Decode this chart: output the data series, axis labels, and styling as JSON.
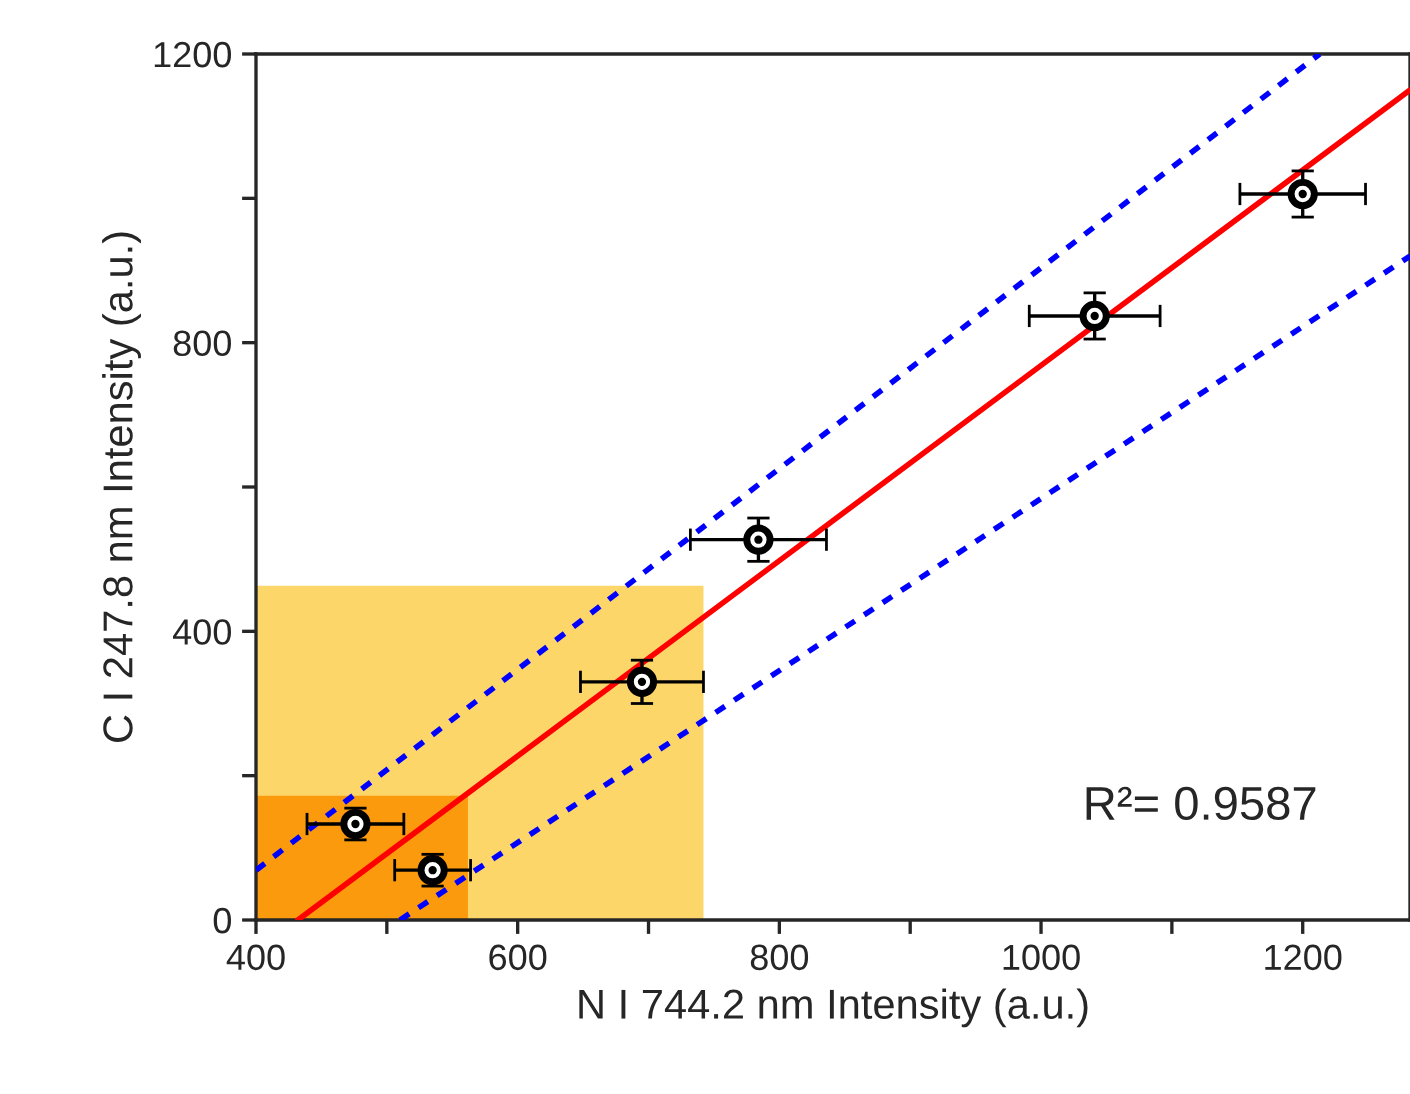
{
  "chart_data": {
    "type": "scatter",
    "xlabel": "N I 744.2 nm Intensity (a.u.)",
    "ylabel": "C I 247.8 nm Intensity (a.u.)",
    "xlim": [
      400,
      1282
    ],
    "ylim": [
      0,
      1200
    ],
    "xticks": [
      400,
      {
        "value": 500,
        "label": null
      },
      600,
      {
        "value": 700,
        "label": null
      },
      800,
      {
        "value": 900,
        "label": null
      },
      1000,
      {
        "value": 1100,
        "label": null
      },
      1200
    ],
    "yticks": [
      0,
      {
        "value": 200,
        "label": null
      },
      400,
      {
        "value": 600,
        "label": null
      },
      800,
      {
        "value": 1000,
        "label": null
      },
      1200
    ],
    "grid": false,
    "legend": false,
    "series": [
      {
        "type": "area",
        "color": "#fdd66a",
        "x": [
          400,
          742
        ],
        "values": [
          463,
          463
        ]
      },
      {
        "type": "area",
        "color": "#fa9a0c",
        "x": [
          400,
          562
        ],
        "values": [
          172,
          172
        ]
      },
      {
        "type": "line",
        "marker": "none",
        "color": "#ff0000",
        "line_style": "solid",
        "x": [
          432,
          1282
        ],
        "values": [
          0,
          1150
        ]
      },
      {
        "type": "line",
        "marker": "none",
        "color": "#0000ff",
        "line_style": "dashed",
        "x": [
          400,
          1213
        ],
        "values": [
          69,
          1200
        ]
      },
      {
        "type": "line",
        "marker": "none",
        "color": "#0000ff",
        "line_style": "dashed",
        "x": [
          510,
          1282
        ],
        "values": [
          0,
          920
        ]
      },
      {
        "marker": "circle",
        "color": "#000000",
        "x": [
          476,
          535,
          695,
          784,
          1041,
          1200
        ],
        "values": [
          133,
          69,
          330,
          527,
          837,
          1006
        ],
        "xerrors": [
          37,
          29,
          47,
          52,
          50,
          48
        ],
        "errors": [
          22,
          22,
          30,
          30,
          32,
          32
        ]
      }
    ],
    "annotations": [
      "R²= 0.9587"
    ]
  }
}
